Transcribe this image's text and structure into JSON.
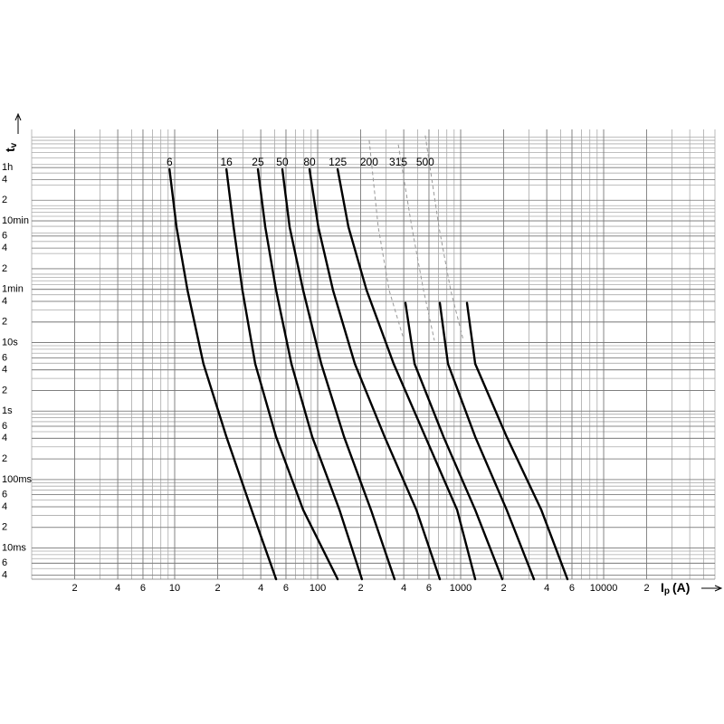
{
  "chart_data": {
    "type": "line",
    "x_label": {
      "text": "I",
      "sub": "p",
      "unit": "(A)"
    },
    "y_label": {
      "text": "t",
      "sub": "v"
    },
    "log_x": true,
    "log_y": true,
    "grid": true,
    "xlim": [
      1,
      60000
    ],
    "ylim": [
      0.0035,
      13000
    ],
    "xticks": [
      2,
      4,
      6,
      10,
      {
        "value": 20,
        "label": "2"
      },
      {
        "value": 40,
        "label": "4"
      },
      {
        "value": 60,
        "label": "6"
      },
      100,
      {
        "value": 200,
        "label": "2"
      },
      {
        "value": 400,
        "label": "4"
      },
      {
        "value": 600,
        "label": "6"
      },
      1000,
      {
        "value": 2000,
        "label": "2"
      },
      {
        "value": 4000,
        "label": "4"
      },
      {
        "value": 6000,
        "label": "6"
      },
      10000,
      {
        "value": 20000,
        "label": "2"
      }
    ],
    "yticks": [
      {
        "value": 0.004,
        "label": "4"
      },
      {
        "value": 0.006,
        "label": "6"
      },
      {
        "value": 0.01,
        "label": "10ms"
      },
      {
        "value": 0.02,
        "label": "2"
      },
      {
        "value": 0.04,
        "label": "4"
      },
      {
        "value": 0.06,
        "label": "6"
      },
      {
        "value": 0.1,
        "label": "100ms"
      },
      {
        "value": 0.2,
        "label": "2"
      },
      {
        "value": 0.4,
        "label": "4"
      },
      {
        "value": 0.6,
        "label": "6"
      },
      {
        "value": 1,
        "label": "1s"
      },
      2,
      4,
      6,
      {
        "value": 10,
        "label": "10s"
      },
      {
        "value": 20,
        "label": "2"
      },
      {
        "value": 40,
        "label": "4"
      },
      {
        "value": 60,
        "label": "1min"
      },
      {
        "value": 120,
        "label": "2"
      },
      {
        "value": 240,
        "label": "4"
      },
      {
        "value": 360,
        "label": "6"
      },
      {
        "value": 600,
        "label": "10min"
      },
      {
        "value": 1200,
        "label": "2"
      },
      {
        "value": 2400,
        "label": "4"
      },
      {
        "value": 3600,
        "label": "1h"
      }
    ],
    "x_minor_ticks": [
      1,
      2,
      3,
      4,
      5,
      6,
      7,
      8,
      9,
      10,
      20,
      30,
      40,
      50,
      60,
      70,
      80,
      90,
      100,
      200,
      300,
      400,
      500,
      600,
      700,
      800,
      900,
      1000,
      2000,
      3000,
      4000,
      5000,
      6000,
      7000,
      8000,
      9000,
      10000,
      20000,
      30000,
      40000,
      50000,
      60000
    ],
    "y_minor_ticks": [
      0.004,
      0.005,
      0.006,
      0.007,
      0.008,
      0.009,
      0.01,
      0.02,
      0.03,
      0.04,
      0.05,
      0.06,
      0.07,
      0.08,
      0.09,
      0.1,
      0.2,
      0.3,
      0.4,
      0.5,
      0.6,
      0.7,
      0.8,
      0.9,
      1,
      2,
      3,
      4,
      5,
      6,
      7,
      8,
      9,
      10,
      20,
      30,
      40,
      50,
      60,
      70,
      80,
      90,
      100,
      200,
      300,
      400,
      500,
      600,
      700,
      800,
      900,
      1000,
      2000,
      3000,
      4000,
      5000,
      6000,
      7000,
      8000,
      9000,
      10000
    ],
    "color": "#000000",
    "dashed_color": "#999999",
    "series": [
      {
        "name": "6",
        "x": [
          9.2,
          10.3,
          12.3,
          15.9,
          23.0,
          34.5,
          51.2
        ],
        "values": [
          3400,
          490,
          58,
          4.9,
          0.42,
          0.036,
          0.0035
        ]
      },
      {
        "name": "16",
        "x": [
          23.0,
          25.8,
          29.8,
          36.6,
          51.2,
          79.2,
          138
        ],
        "values": [
          3400,
          490,
          58,
          4.9,
          0.42,
          0.036,
          0.0035
        ]
      },
      {
        "name": "25",
        "x": [
          38.2,
          43,
          51.2,
          65.5,
          91.6,
          142,
          204
        ],
        "values": [
          3400,
          490,
          58,
          4.9,
          0.42,
          0.036,
          0.0035
        ]
      },
      {
        "name": "50",
        "x": [
          56.6,
          63.6,
          79.2,
          106,
          153,
          236,
          345
        ],
        "values": [
          3400,
          490,
          58,
          4.9,
          0.42,
          0.036,
          0.0035
        ]
      },
      {
        "name": "80",
        "x": [
          87.7,
          101,
          128,
          182,
          294,
          490,
          715
        ],
        "values": [
          3400,
          490,
          58,
          4.9,
          0.42,
          0.036,
          0.0035
        ]
      },
      {
        "name": "125",
        "x": [
          138,
          164,
          220,
          340,
          566,
          944,
          1263
        ],
        "values": [
          3400,
          490,
          58,
          4.9,
          0.42,
          0.036,
          0.0035
        ]
      },
      {
        "name": "200",
        "x": [
          411,
          476,
          759,
          1263,
          1955
        ],
        "values": [
          38,
          4.9,
          0.42,
          0.036,
          0.0035
        ],
        "dashed_x": [
          229,
          265,
          316,
          394
        ],
        "dashed_values": [
          9100,
          490,
          58,
          12.4
        ]
      },
      {
        "name": "315",
        "x": [
          715,
          815,
          1263,
          2100,
          3255
        ],
        "values": [
          38,
          4.9,
          0.42,
          0.036,
          0.0035
        ],
        "dashed_x": [
          366,
          455,
          550,
          655
        ],
        "dashed_values": [
          7800,
          490,
          58,
          10.7
        ]
      },
      {
        "name": "500",
        "x": [
          1107,
          1263,
          2100,
          3660,
          5580
        ],
        "values": [
          38,
          4.9,
          0.42,
          0.036,
          0.0035
        ],
        "dashed_x": [
          565,
          705,
          851,
          1045
        ],
        "dashed_values": [
          10600,
          490,
          58,
          10.7
        ]
      }
    ]
  }
}
